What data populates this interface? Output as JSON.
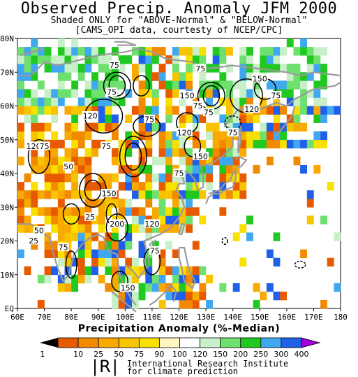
{
  "title": "Observed Precip. Anomaly JFM 2000",
  "subtitle1": "Shaded ONLY for \"ABOVE-Normal\" & \"BELOW-Normal\"",
  "subtitle2": "[CAMS_OPI data, courtesty of NCEP/CPC]",
  "map": {
    "lon_labels": [
      "60E",
      "70E",
      "80E",
      "90E",
      "100E",
      "110E",
      "120E",
      "130E",
      "140E",
      "150E",
      "160E",
      "170E",
      "180"
    ],
    "lat_labels": [
      "EQ",
      "10N",
      "20N",
      "30N",
      "40N",
      "50N",
      "60N",
      "70N",
      "80N"
    ],
    "lon_range": [
      60,
      180
    ],
    "lat_range": [
      0,
      80
    ],
    "contour_labels": [
      {
        "text": "75",
        "lon": 96,
        "lat": 72
      },
      {
        "text": "75",
        "lon": 95,
        "lat": 64
      },
      {
        "text": "75",
        "lon": 128,
        "lat": 71
      },
      {
        "text": "150",
        "lon": 123,
        "lat": 63
      },
      {
        "text": "75",
        "lon": 127,
        "lat": 60
      },
      {
        "text": "75",
        "lon": 131,
        "lat": 58
      },
      {
        "text": "150",
        "lon": 150,
        "lat": 68
      },
      {
        "text": "120",
        "lon": 147,
        "lat": 59
      },
      {
        "text": "75",
        "lon": 156,
        "lat": 63
      },
      {
        "text": "120",
        "lon": 87,
        "lat": 57
      },
      {
        "text": "75",
        "lon": 109,
        "lat": 56
      },
      {
        "text": "75",
        "lon": 140,
        "lat": 52
      },
      {
        "text": "120",
        "lon": 122,
        "lat": 52
      },
      {
        "text": "120",
        "lon": 66,
        "lat": 48
      },
      {
        "text": "75",
        "lon": 70,
        "lat": 48
      },
      {
        "text": "75",
        "lon": 93,
        "lat": 48
      },
      {
        "text": "150",
        "lon": 128,
        "lat": 45
      },
      {
        "text": "75",
        "lon": 120,
        "lat": 40
      },
      {
        "text": "50",
        "lon": 79,
        "lat": 42
      },
      {
        "text": "150",
        "lon": 94,
        "lat": 34
      },
      {
        "text": "25",
        "lon": 87,
        "lat": 27
      },
      {
        "text": "200",
        "lon": 97,
        "lat": 25
      },
      {
        "text": "120",
        "lon": 110,
        "lat": 25
      },
      {
        "text": "50",
        "lon": 68,
        "lat": 23
      },
      {
        "text": "25",
        "lon": 66,
        "lat": 20
      },
      {
        "text": "75",
        "lon": 77,
        "lat": 18
      },
      {
        "text": "75",
        "lon": 111,
        "lat": 17
      },
      {
        "text": "150",
        "lon": 101,
        "lat": 6
      }
    ]
  },
  "legend": {
    "title": "Precipitation Anomaly (%-Median)",
    "ticks": [
      "1",
      "10",
      "25",
      "50",
      "75",
      "90",
      "100",
      "120",
      "150",
      "200",
      "250",
      "300",
      "400"
    ],
    "colors": [
      "#e85a00",
      "#f28a00",
      "#f8aa00",
      "#f8c400",
      "#f8e000",
      "#fff6c0",
      "#ffffff",
      "#c8f0c8",
      "#6ee06e",
      "#20c820",
      "#40a8f0",
      "#2060e8",
      "#7020d8"
    ],
    "low_arrow_color": "#000000",
    "high_arrow_color": "#a000d8"
  },
  "credit": {
    "logo_text": "|R|",
    "line1": "International Research Institute",
    "line2": "for climate prediction"
  }
}
